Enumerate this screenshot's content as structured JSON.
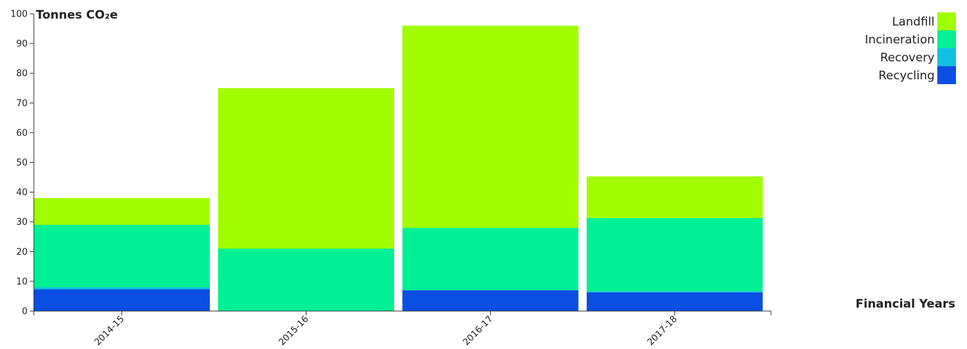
{
  "chart_data": {
    "type": "bar",
    "stacked": true,
    "ylabel": "Tonnes CO₂e",
    "xlabel": "Financial Years",
    "categories": [
      "2014-15",
      "2015-16",
      "2016-17",
      "2017-18"
    ],
    "ylim": [
      0,
      100
    ],
    "yticks": [
      0,
      10,
      20,
      30,
      40,
      50,
      60,
      70,
      80,
      90,
      100
    ],
    "grid": false,
    "legend_position": "top-right",
    "series": [
      {
        "name": "Recycling",
        "color": "#0b4ee4",
        "values": [
          7.3,
          0,
          7,
          6.3
        ]
      },
      {
        "name": "Recovery",
        "color": "#12bfe0",
        "values": [
          0.7,
          0,
          0,
          0.4
        ]
      },
      {
        "name": "Incineration",
        "color": "#00f095",
        "values": [
          21,
          21,
          21,
          24.6
        ]
      },
      {
        "name": "Landfill",
        "color": "#a2fd00",
        "values": [
          9,
          54,
          68,
          14
        ]
      }
    ],
    "legend_order": [
      "Landfill",
      "Incineration",
      "Recovery",
      "Recycling"
    ]
  }
}
